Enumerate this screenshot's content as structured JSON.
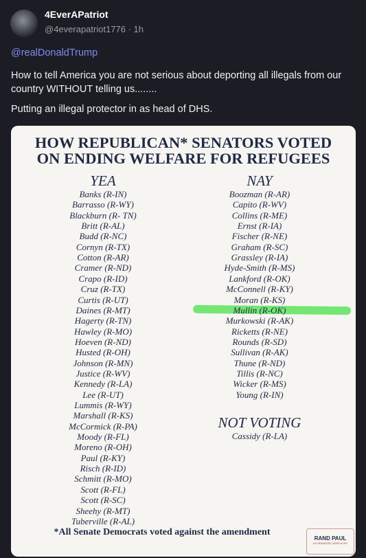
{
  "post": {
    "author": "4EverAPatriot",
    "handle": "@4everapatriot1776 · 1h",
    "mention": "@realDonaldTrump",
    "paragraphs": [
      "How to tell America you are not serious about deporting all illegals from our country WITHOUT telling us........",
      "Putting an illegal protector in as head of DHS."
    ]
  },
  "image": {
    "title": [
      "HOW REPUBLICAN* SENATORS VOTED",
      "ON ENDING WELFARE FOR REFUGEES"
    ],
    "yea": {
      "heading": "YEA",
      "names": [
        "Banks (R-IN)",
        "Barrasso (R-WY)",
        "Blackburn (R- TN)",
        "Britt (R-AL)",
        "Budd (R-NC)",
        "Cornyn (R-TX)",
        "Cotton (R-AR)",
        "Cramer (R-ND)",
        "Crapo (R-ID)",
        "Cruz (R-TX)",
        "Curtis (R-UT)",
        "Daines (R-MT)",
        "Hagerty (R-TN)",
        "Hawley (R-MO)",
        "Hoeven (R-ND)",
        "Husted (R-OH)",
        "Johnson (R-MN)",
        "Justice (R-WV)",
        "Kennedy (R-LA)",
        "Lee (R-UT)",
        "Lummis (R-WY)",
        "Marshall (R-KS)",
        "McCormick (R-PA)",
        "Moody (R-FL)",
        "Moreno (R-OH)",
        "Paul (R-KY)",
        "Risch (R-ID)",
        "Schmitt (R-MO)",
        "Scott (R-FL)",
        "Scott (R-SC)",
        "Sheehy (R-MT)",
        "Tuberville (R-AL)"
      ]
    },
    "nay": {
      "heading": "NAY",
      "names": [
        "Boozman (R-AR)",
        "Capito (R-WV)",
        "Collins (R-ME)",
        "Ernst (R-IA)",
        "Fischer (R-NE)",
        "Graham (R-SC)",
        "Grassley (R-IA)",
        "Hyde-Smith (R-MS)",
        "Lankford (R-OK)",
        "McConnell (R-KY)",
        "Moran (R-KS)",
        "Mullin (R-OK)",
        "Murkowski (R-AK)",
        "Ricketts (R-NE)",
        "Rounds (R-SD)",
        "Sullivan (R-AK)",
        "Thune (R-ND)",
        "Tillis (R-NC)",
        "Wicker (R-MS)",
        "Young (R-IN)"
      ]
    },
    "not_voting": {
      "heading": "NOT VOTING",
      "names": [
        "Cassidy (R-LA)"
      ]
    },
    "footnote": "*All Senate Democrats voted against the amendment",
    "logo": [
      "RAND PAUL",
      "US SENATOR | KENTUCKY"
    ]
  }
}
